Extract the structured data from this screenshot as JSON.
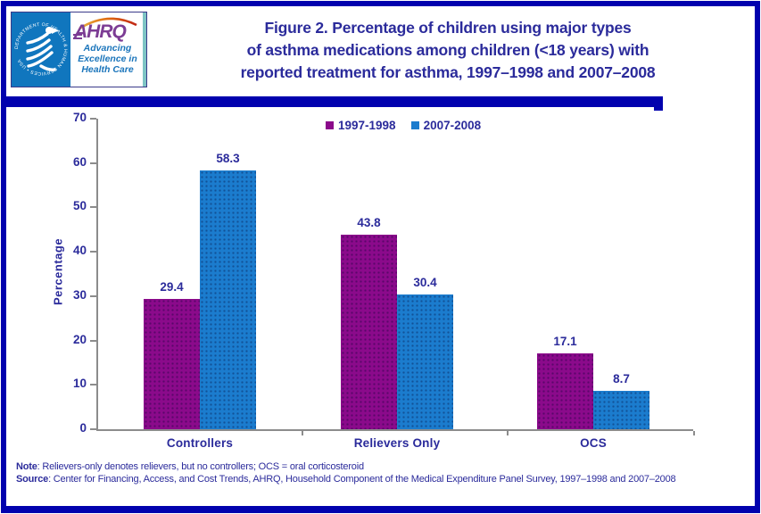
{
  "page": {
    "border_color": "#0101AE",
    "background": "#FFFFFF",
    "text_color": "#2B2B9B",
    "axis_color": "#8C8C8C"
  },
  "header": {
    "logo": {
      "seal_text": "DEPARTMENT OF HEALTH & HUMAN SERVICES • USA",
      "org": "AHRQ",
      "tagline_lines": [
        "Advancing",
        "Excellence in",
        "Health Care"
      ]
    },
    "title_lines": [
      "Figure 2. Percentage of children using major types",
      "of asthma medications among children (<18 years) with",
      "reported treatment for asthma, 1997–1998 and 2007–2008"
    ]
  },
  "chart_data": {
    "type": "bar",
    "title": "",
    "categories": [
      "Controllers",
      "Relievers Only",
      "OCS"
    ],
    "series": [
      {
        "name": "1997-1998",
        "color": "#8B0A8B",
        "values": [
          29.4,
          43.8,
          17.1
        ]
      },
      {
        "name": "2007-2008",
        "color": "#1B7CCE",
        "values": [
          58.3,
          30.4,
          8.7
        ]
      }
    ],
    "xlabel": "",
    "ylabel": "Percentage",
    "ylim": [
      0,
      70
    ],
    "yticks": [
      0,
      10,
      20,
      30,
      40,
      50,
      60,
      70
    ],
    "grid": false,
    "legend_position": "top-center",
    "value_labels": true
  },
  "footer": {
    "note_label": "Note",
    "note_text": ": Relievers-only denotes relievers, but no controllers; OCS = oral corticosteroid",
    "source_label": "Source",
    "source_text": ": Center for Financing, Access, and Cost Trends, AHRQ,  Household Component of the Medical Expenditure Panel Survey,  1997–1998 and 2007–2008"
  }
}
